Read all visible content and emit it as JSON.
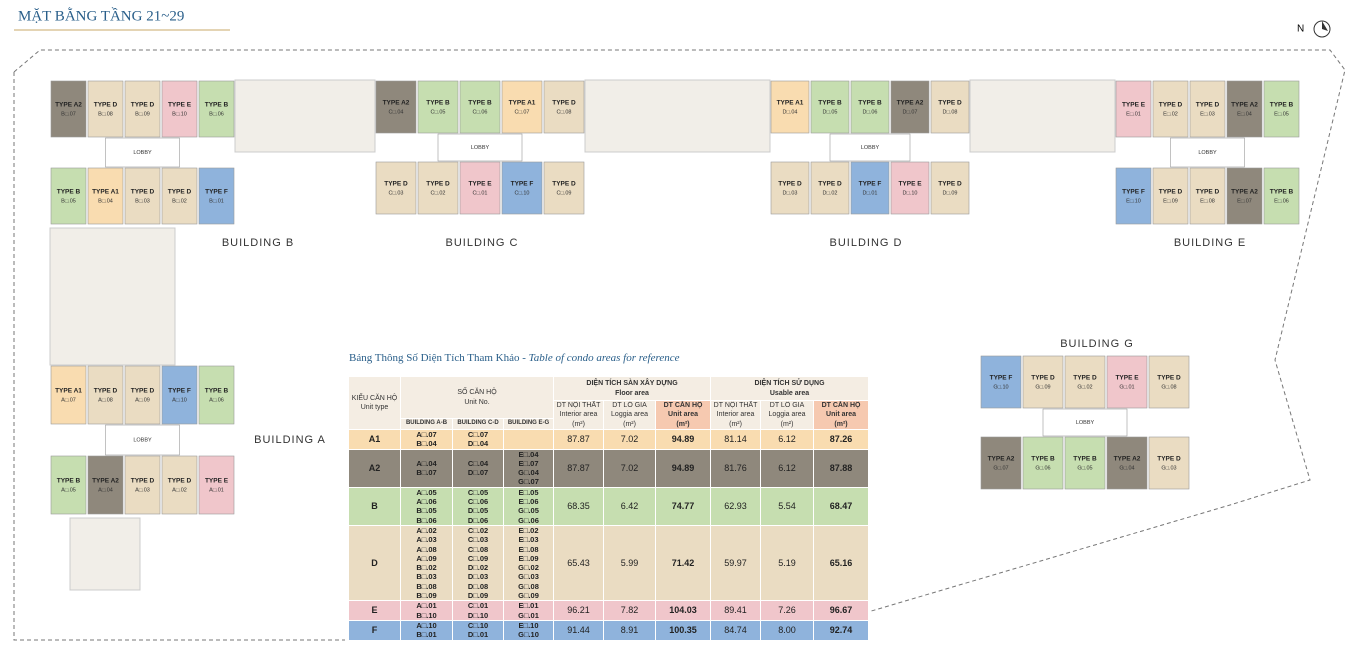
{
  "header": {
    "title": "MẶT BẰNG TẦNG 21~29",
    "compass": "N"
  },
  "lobby_label": "LOBBY",
  "buildings": [
    {
      "label": "BUILDING B",
      "units": [
        {
          "type": "TYPE A2",
          "code": "B□.07",
          "color": "#8f887c"
        },
        {
          "type": "TYPE D",
          "code": "B□.08",
          "color": "#eadcc2"
        },
        {
          "type": "TYPE D",
          "code": "B□.09",
          "color": "#eadcc2"
        },
        {
          "type": "TYPE E",
          "code": "B□.10",
          "color": "#f0c6cb"
        },
        {
          "type": "TYPE B",
          "code": "B□.06",
          "color": "#c6deb0"
        },
        {
          "type": "TYPE B",
          "code": "B□.05",
          "color": "#c6deb0"
        },
        {
          "type": "TYPE A1",
          "code": "B□.04",
          "color": "#f9dcb0"
        },
        {
          "type": "TYPE D",
          "code": "B□.03",
          "color": "#eadcc2"
        },
        {
          "type": "TYPE D",
          "code": "B□.02",
          "color": "#eadcc2"
        },
        {
          "type": "TYPE F",
          "code": "B□.01",
          "color": "#8fb3dc"
        }
      ]
    },
    {
      "label": "BUILDING C",
      "units": [
        {
          "type": "TYPE A2",
          "code": "C□.04",
          "color": "#8f887c"
        },
        {
          "type": "TYPE B",
          "code": "C□.05",
          "color": "#c6deb0"
        },
        {
          "type": "TYPE B",
          "code": "C□.06",
          "color": "#c6deb0"
        },
        {
          "type": "TYPE A1",
          "code": "C□.07",
          "color": "#f9dcb0"
        },
        {
          "type": "TYPE D",
          "code": "C□.08",
          "color": "#eadcc2"
        },
        {
          "type": "TYPE D",
          "code": "C□.03",
          "color": "#eadcc2"
        },
        {
          "type": "TYPE D",
          "code": "C□.02",
          "color": "#eadcc2"
        },
        {
          "type": "TYPE E",
          "code": "C□.01",
          "color": "#f0c6cb"
        },
        {
          "type": "TYPE F",
          "code": "C□.10",
          "color": "#8fb3dc"
        },
        {
          "type": "TYPE D",
          "code": "C□.09",
          "color": "#eadcc2"
        }
      ]
    },
    {
      "label": "BUILDING D",
      "units": [
        {
          "type": "TYPE A1",
          "code": "D□.04",
          "color": "#f9dcb0"
        },
        {
          "type": "TYPE B",
          "code": "D□.05",
          "color": "#c6deb0"
        },
        {
          "type": "TYPE B",
          "code": "D□.06",
          "color": "#c6deb0"
        },
        {
          "type": "TYPE A2",
          "code": "D□.07",
          "color": "#8f887c"
        },
        {
          "type": "TYPE D",
          "code": "D□.08",
          "color": "#eadcc2"
        },
        {
          "type": "TYPE D",
          "code": "D□.03",
          "color": "#eadcc2"
        },
        {
          "type": "TYPE D",
          "code": "D□.02",
          "color": "#eadcc2"
        },
        {
          "type": "TYPE F",
          "code": "D□.01",
          "color": "#8fb3dc"
        },
        {
          "type": "TYPE E",
          "code": "D□.10",
          "color": "#f0c6cb"
        },
        {
          "type": "TYPE D",
          "code": "D□.09",
          "color": "#eadcc2"
        }
      ]
    },
    {
      "label": "BUILDING E",
      "units": [
        {
          "type": "TYPE E",
          "code": "E□.01",
          "color": "#f0c6cb"
        },
        {
          "type": "TYPE D",
          "code": "E□.02",
          "color": "#eadcc2"
        },
        {
          "type": "TYPE D",
          "code": "E□.03",
          "color": "#eadcc2"
        },
        {
          "type": "TYPE A2",
          "code": "E□.04",
          "color": "#8f887c"
        },
        {
          "type": "TYPE B",
          "code": "E□.05",
          "color": "#c6deb0"
        },
        {
          "type": "TYPE F",
          "code": "E□.10",
          "color": "#8fb3dc"
        },
        {
          "type": "TYPE D",
          "code": "E□.09",
          "color": "#eadcc2"
        },
        {
          "type": "TYPE D",
          "code": "E□.08",
          "color": "#eadcc2"
        },
        {
          "type": "TYPE A2",
          "code": "E□.07",
          "color": "#8f887c"
        },
        {
          "type": "TYPE B",
          "code": "E□.06",
          "color": "#c6deb0"
        }
      ]
    },
    {
      "label": "BUILDING A",
      "units": [
        {
          "type": "TYPE A1",
          "code": "A□.07",
          "color": "#f9dcb0"
        },
        {
          "type": "TYPE D",
          "code": "A□.08",
          "color": "#eadcc2"
        },
        {
          "type": "TYPE D",
          "code": "A□.09",
          "color": "#eadcc2"
        },
        {
          "type": "TYPE F",
          "code": "A□.10",
          "color": "#8fb3dc"
        },
        {
          "type": "TYPE B",
          "code": "A□.06",
          "color": "#c6deb0"
        },
        {
          "type": "TYPE B",
          "code": "A□.05",
          "color": "#c6deb0"
        },
        {
          "type": "TYPE A2",
          "code": "A□.04",
          "color": "#8f887c"
        },
        {
          "type": "TYPE D",
          "code": "A□.03",
          "color": "#eadcc2"
        },
        {
          "type": "TYPE D",
          "code": "A□.02",
          "color": "#eadcc2"
        },
        {
          "type": "TYPE E",
          "code": "A□.01",
          "color": "#f0c6cb"
        }
      ]
    },
    {
      "label": "BUILDING G",
      "units": [
        {
          "type": "TYPE F",
          "code": "G□.10",
          "color": "#8fb3dc"
        },
        {
          "type": "TYPE D",
          "code": "G□.09",
          "color": "#eadcc2"
        },
        {
          "type": "TYPE D",
          "code": "G□.02",
          "color": "#eadcc2"
        },
        {
          "type": "TYPE E",
          "code": "G□.01",
          "color": "#f0c6cb"
        },
        {
          "type": "TYPE D",
          "code": "G□.08",
          "color": "#eadcc2"
        },
        {
          "type": "TYPE A2",
          "code": "G□.07",
          "color": "#8f887c"
        },
        {
          "type": "TYPE B",
          "code": "G□.06",
          "color": "#c6deb0"
        },
        {
          "type": "TYPE B",
          "code": "G□.05",
          "color": "#c6deb0"
        },
        {
          "type": "TYPE A2",
          "code": "G□.04",
          "color": "#8f887c"
        },
        {
          "type": "TYPE D",
          "code": "G□.03",
          "color": "#eadcc2"
        }
      ]
    }
  ],
  "table": {
    "caption": "Bảng Thông Số Diện Tích Tham Khảo -",
    "caption_en": "Table of condo areas for reference",
    "head": {
      "type": "KIỂU CĂN HỘ",
      "type_en": "Unit type",
      "unit_no": "SỐ CĂN HỘ",
      "unit_no_en": "Unit No.",
      "buildings": [
        "BUILDING A-B",
        "BUILDING C-D",
        "BUILDING E-G"
      ],
      "floor": "DIỆN TÍCH SÀN XÂY DỰNG",
      "floor_en": "Floor area",
      "usable": "DIỆN TÍCH SỬ DỤNG",
      "usable_en": "Usable area",
      "cols": [
        {
          "vi": "DT NỘI THẤT",
          "en": "Interior area",
          "unit": "(m²)"
        },
        {
          "vi": "DT LÔ GIA",
          "en": "Loggia area",
          "unit": "(m²)"
        },
        {
          "vi": "DT CĂN HỘ",
          "en": "Unit area",
          "unit": "(m²)"
        },
        {
          "vi": "DT NỘI THẤT",
          "en": "Interior area",
          "unit": "(m²)"
        },
        {
          "vi": "DT LÔ GIA",
          "en": "Loggia area",
          "unit": "(m²)"
        },
        {
          "vi": "DT CĂN HỘ",
          "en": "Unit area",
          "unit": "(m²)"
        }
      ]
    },
    "rows": [
      {
        "type": "A1",
        "color": "#f9dcb0",
        "units": [
          [
            "A□.07",
            "B□.04"
          ],
          [
            "C□.07",
            "D□.04"
          ],
          []
        ],
        "values": [
          "87.87",
          "7.02",
          "94.89",
          "81.14",
          "6.12",
          "87.26"
        ]
      },
      {
        "type": "A2",
        "color": "#8f887c",
        "units": [
          [
            "A□.04",
            "B□.07"
          ],
          [
            "C□.04",
            "D□.07"
          ],
          [
            "E□.04",
            "E□.07",
            "G□.04",
            "G□.07"
          ]
        ],
        "values": [
          "87.87",
          "7.02",
          "94.89",
          "81.76",
          "6.12",
          "87.88"
        ]
      },
      {
        "type": "B",
        "color": "#c6deb0",
        "units": [
          [
            "A□.05",
            "A□.06",
            "B□.05",
            "B□.06"
          ],
          [
            "C□.05",
            "C□.06",
            "D□.05",
            "D□.06"
          ],
          [
            "E□.05",
            "E□.06",
            "G□.05",
            "G□.06"
          ]
        ],
        "values": [
          "68.35",
          "6.42",
          "74.77",
          "62.93",
          "5.54",
          "68.47"
        ]
      },
      {
        "type": "D",
        "color": "#eadcc2",
        "units": [
          [
            "A□.02",
            "A□.03",
            "A□.08",
            "A□.09",
            "B□.02",
            "B□.03",
            "B□.08",
            "B□.09"
          ],
          [
            "C□.02",
            "C□.03",
            "C□.08",
            "C□.09",
            "D□.02",
            "D□.03",
            "D□.08",
            "D□.09"
          ],
          [
            "E□.02",
            "E□.03",
            "E□.08",
            "E□.09",
            "G□.02",
            "G□.03",
            "G□.08",
            "G□.09"
          ]
        ],
        "values": [
          "65.43",
          "5.99",
          "71.42",
          "59.97",
          "5.19",
          "65.16"
        ]
      },
      {
        "type": "E",
        "color": "#f0c6cb",
        "units": [
          [
            "A□.01",
            "B□.10"
          ],
          [
            "C□.01",
            "D□.10"
          ],
          [
            "E□.01",
            "G□.01"
          ]
        ],
        "values": [
          "96.21",
          "7.82",
          "104.03",
          "89.41",
          "7.26",
          "96.67"
        ]
      },
      {
        "type": "F",
        "color": "#8fb3dc",
        "units": [
          [
            "A□.10",
            "B□.01"
          ],
          [
            "C□.10",
            "D□.01"
          ],
          [
            "E□.10",
            "G□.10"
          ]
        ],
        "values": [
          "91.44",
          "8.91",
          "100.35",
          "84.74",
          "8.00",
          "92.74"
        ]
      }
    ]
  }
}
